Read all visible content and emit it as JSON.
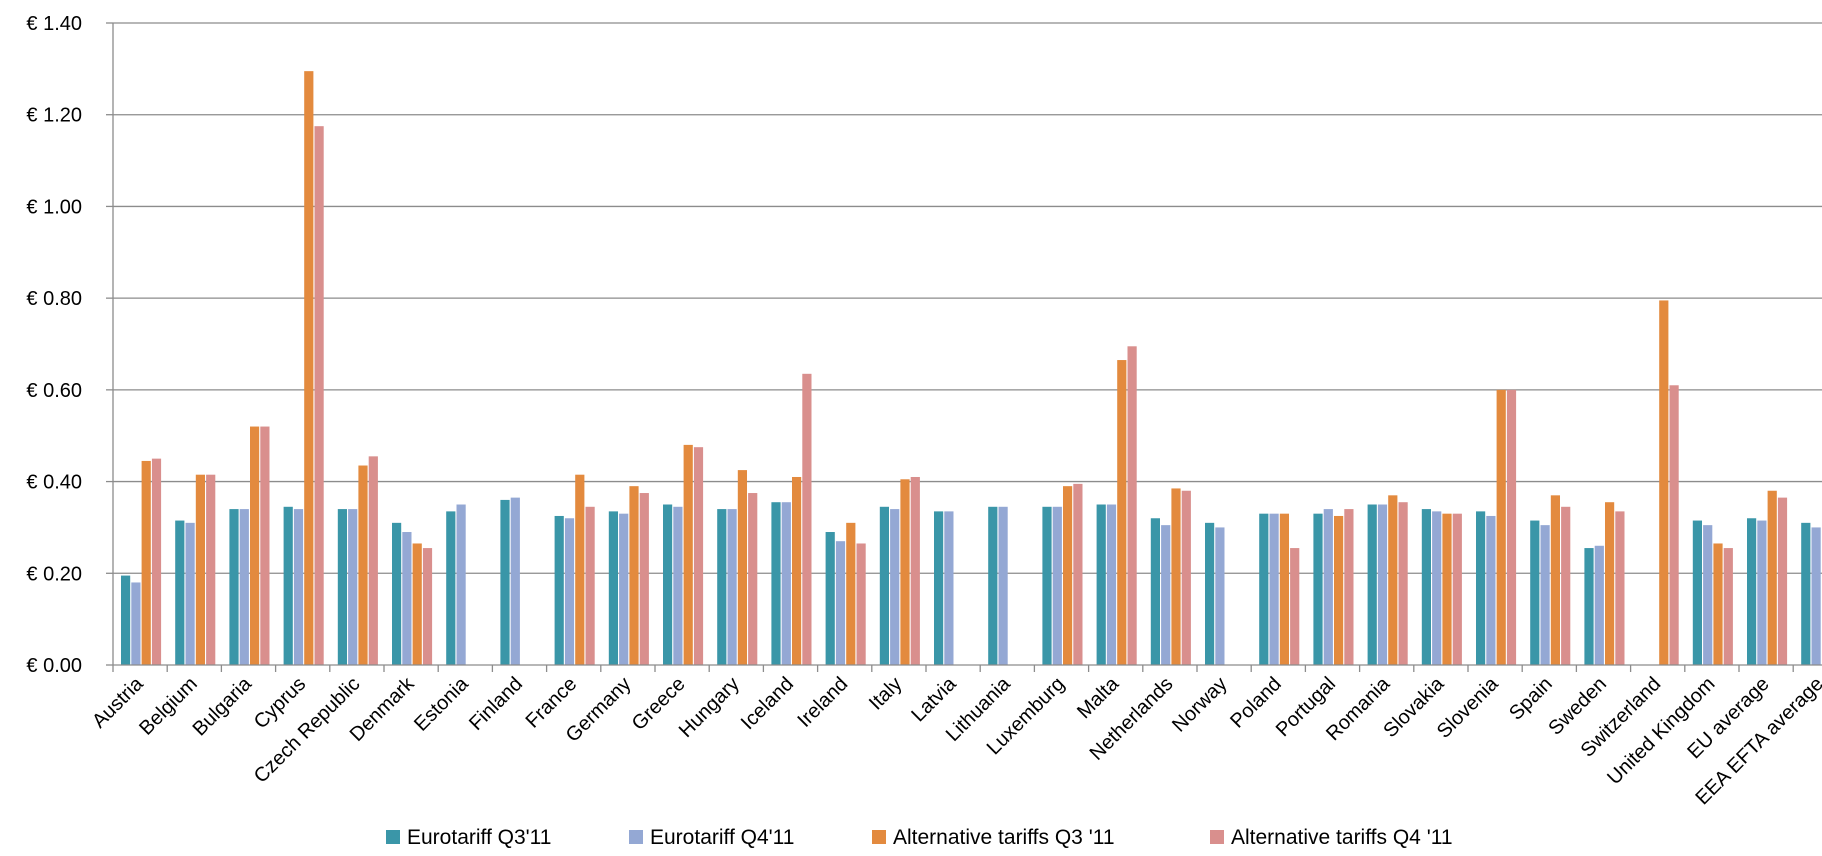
{
  "chart_data": {
    "type": "bar",
    "title": "",
    "xlabel": "",
    "ylabel": "",
    "ylim": [
      0,
      1.4
    ],
    "y_ticks": [
      "€ 0.00",
      "€ 0.20",
      "€ 0.40",
      "€ 0.60",
      "€ 0.80",
      "€ 1.00",
      "€ 1.20",
      "€ 1.40"
    ],
    "y_tick_values": [
      0,
      0.2,
      0.4,
      0.6,
      0.8,
      1.0,
      1.2,
      1.4
    ],
    "grid": true,
    "legend_position": "bottom",
    "categories": [
      "Austria",
      "Belgium",
      "Bulgaria",
      "Cyprus",
      "Czech Republic",
      "Denmark",
      "Estonia",
      "Finland",
      "France",
      "Germany",
      "Greece",
      "Hungary",
      "Iceland",
      "Ireland",
      "Italy",
      "Latvia",
      "Lithuania",
      "Luxemburg",
      "Malta",
      "Netherlands",
      "Norway",
      "Poland",
      "Portugal",
      "Romania",
      "Slovakia",
      "Slovenia",
      "Spain",
      "Sweden",
      "Switzerland",
      "United Kingdom",
      "EU average",
      "EEA EFTA average"
    ],
    "series": [
      {
        "name": "Eurotariff Q3'11",
        "color": "#3a96a8",
        "values": [
          0.195,
          0.315,
          0.34,
          0.345,
          0.34,
          0.31,
          0.335,
          0.36,
          0.325,
          0.335,
          0.35,
          0.34,
          0.355,
          0.29,
          0.345,
          0.335,
          0.345,
          0.345,
          0.35,
          0.32,
          0.31,
          0.33,
          0.33,
          0.35,
          0.34,
          0.335,
          0.315,
          0.255,
          null,
          0.315,
          0.32,
          0.31
        ]
      },
      {
        "name": "Eurotariff Q4'11",
        "color": "#94a8d4",
        "values": [
          0.18,
          0.31,
          0.34,
          0.34,
          0.34,
          0.29,
          0.35,
          0.365,
          0.32,
          0.33,
          0.345,
          0.34,
          0.355,
          0.27,
          0.34,
          0.335,
          0.345,
          0.345,
          0.35,
          0.305,
          0.3,
          0.33,
          0.34,
          0.35,
          0.335,
          0.325,
          0.305,
          0.26,
          null,
          0.305,
          0.315,
          0.3
        ]
      },
      {
        "name": "Alternative tariffs Q3 '11",
        "color": "#e38a3e",
        "values": [
          0.445,
          0.415,
          0.52,
          1.295,
          0.435,
          0.265,
          null,
          null,
          0.415,
          0.39,
          0.48,
          0.425,
          0.41,
          0.31,
          0.405,
          null,
          null,
          0.39,
          0.665,
          0.385,
          null,
          0.33,
          0.325,
          0.37,
          0.33,
          0.6,
          0.37,
          0.355,
          0.795,
          0.265,
          0.38,
          null
        ]
      },
      {
        "name": "Alternative tariffs Q4 '11",
        "color": "#d98f8d",
        "values": [
          0.45,
          0.415,
          0.52,
          1.175,
          0.455,
          0.255,
          null,
          null,
          0.345,
          0.375,
          0.475,
          0.375,
          0.635,
          0.265,
          0.41,
          null,
          null,
          0.395,
          0.695,
          0.38,
          null,
          0.255,
          0.34,
          0.355,
          0.33,
          0.6,
          0.345,
          0.335,
          0.61,
          0.255,
          0.365,
          null
        ]
      }
    ]
  }
}
